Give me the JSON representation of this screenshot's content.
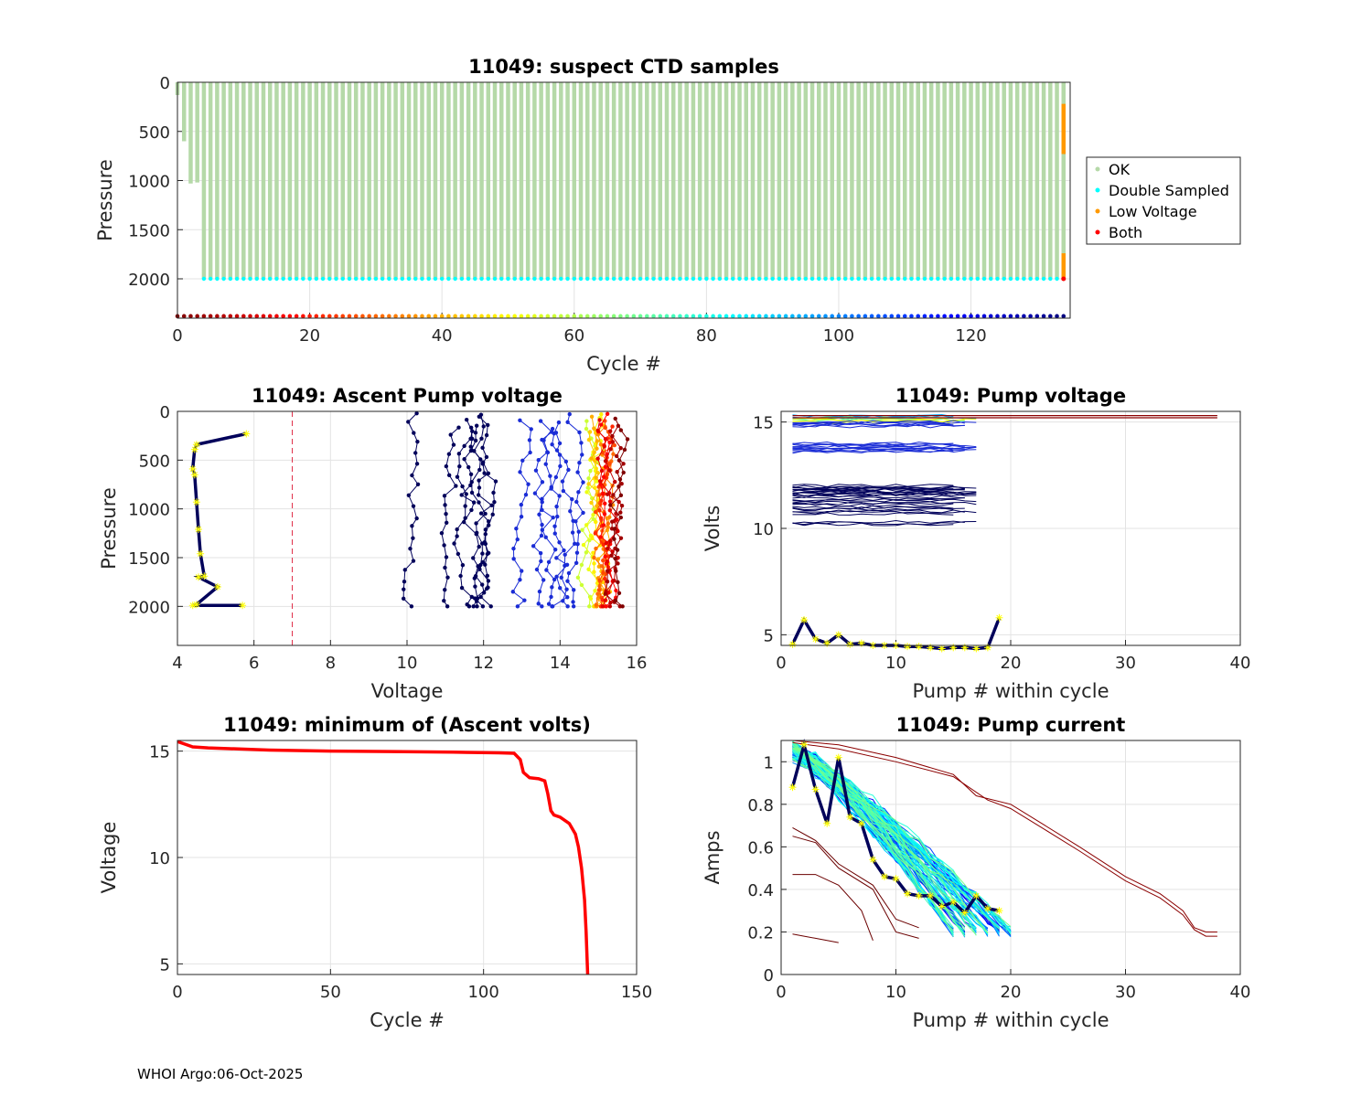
{
  "footer": "WHOI Argo:06-Oct-2025",
  "colors": {
    "ok": "#b5d9a8",
    "double": "#00ffff",
    "low": "#ff9900",
    "both": "#ff0000",
    "threshold": "#e0304a",
    "marker": "#ffff00",
    "darkblue": "#00005a"
  },
  "chart_data": [
    {
      "id": "ctd",
      "type": "scatter",
      "title": "11049: suspect CTD samples",
      "xlabel": "Cycle #",
      "ylabel": "Pressure",
      "xlim": [
        0,
        135
      ],
      "ylim": [
        0,
        2400
      ],
      "y_reversed": true,
      "xticks": [
        0,
        20,
        40,
        60,
        80,
        100,
        120
      ],
      "yticks": [
        0,
        500,
        1000,
        1500,
        2000
      ],
      "legend": [
        "OK",
        "Double Sampled",
        "Low Voltage",
        "Both"
      ],
      "legend_position": "outside-right",
      "cycles": 134,
      "profile_bottom": {
        "first_cycles": [
          [
            0,
            130
          ],
          [
            1,
            600
          ],
          [
            2,
            1030
          ],
          [
            3,
            1020
          ]
        ],
        "default": 2000
      },
      "double_sampled_depth": 2000,
      "double_sampled_from_cycle": 4,
      "low_voltage_segments": [
        {
          "cycle": 134,
          "from": 220,
          "to": 730
        },
        {
          "cycle": 134,
          "from": 1740,
          "to": 2000
        }
      ],
      "both_points": [
        {
          "cycle": 134,
          "p": 2000
        }
      ],
      "cycle_marker_depth": 2380
    },
    {
      "id": "ascent",
      "type": "line",
      "title": "11049: Ascent Pump voltage",
      "xlabel": "Voltage",
      "ylabel": "Pressure",
      "xlim": [
        4,
        16
      ],
      "ylim": [
        0,
        2400
      ],
      "y_reversed": true,
      "xticks": [
        4,
        6,
        8,
        10,
        12,
        14,
        16
      ],
      "yticks": [
        0,
        500,
        1000,
        1500,
        2000
      ],
      "threshold_voltage": 7,
      "highlight_profile": {
        "v": [
          5.8,
          4.5,
          4.45,
          4.4,
          4.45,
          4.5,
          4.55,
          4.6,
          4.7,
          4.55,
          5.05,
          4.5,
          4.4,
          5.7
        ],
        "p": [
          230,
          340,
          390,
          590,
          650,
          930,
          1210,
          1460,
          1690,
          1700,
          1800,
          1980,
          1990,
          1990
        ]
      },
      "profile_voltages": [
        10.1,
        11.1,
        11.5,
        11.7,
        11.85,
        11.95,
        12.05,
        13.0,
        13.55,
        13.75,
        13.95,
        14.1,
        14.4,
        14.75,
        14.9,
        14.98,
        15.02,
        15.06,
        15.1,
        15.13,
        15.16,
        15.19,
        15.22,
        15.25,
        15.3,
        15.42,
        15.5
      ]
    },
    {
      "id": "pumpv",
      "type": "line",
      "title": "11049: Pump voltage",
      "xlabel": "Pump # within cycle",
      "ylabel": "Volts",
      "xlim": [
        0,
        40
      ],
      "ylim": [
        4.5,
        15.5
      ],
      "xticks": [
        0,
        10,
        20,
        30,
        40
      ],
      "yticks": [
        5,
        10,
        15
      ],
      "highlight": {
        "v": [
          4.55,
          5.7,
          4.8,
          4.6,
          5.0,
          4.55,
          4.6,
          4.5,
          4.5,
          4.5,
          4.45,
          4.45,
          4.4,
          4.35,
          4.4,
          4.4,
          4.35,
          4.4,
          5.8
        ]
      },
      "level_lines": [
        15.3,
        15.2,
        15.1,
        15.0,
        14.9,
        14.0,
        13.9,
        13.8,
        13.7,
        12.0,
        11.9,
        11.8,
        11.7,
        11.6,
        11.4,
        11.2,
        11.0,
        10.8,
        10.3
      ],
      "red_lines": [
        {
          "from": 1,
          "to": 38,
          "v": 15.3
        },
        {
          "from": 1,
          "to": 38,
          "v": 15.2
        }
      ]
    },
    {
      "id": "minv",
      "type": "line",
      "title": "11049: minimum of (Ascent volts)",
      "xlabel": "Cycle #",
      "ylabel": "Voltage",
      "xlim": [
        0,
        150
      ],
      "ylim": [
        4.5,
        15.5
      ],
      "xticks": [
        0,
        50,
        100,
        150
      ],
      "yticks": [
        5,
        10,
        15
      ],
      "x": [
        0,
        2,
        5,
        10,
        30,
        50,
        70,
        90,
        105,
        110,
        112,
        113,
        115,
        118,
        120,
        121,
        122,
        123,
        125,
        128,
        130,
        131,
        132,
        133,
        133.5,
        134
      ],
      "y": [
        15.45,
        15.35,
        15.2,
        15.15,
        15.05,
        15.0,
        14.98,
        14.95,
        14.92,
        14.9,
        14.6,
        14.0,
        13.75,
        13.7,
        13.6,
        13.0,
        12.2,
        12.0,
        11.9,
        11.6,
        11.1,
        10.5,
        9.5,
        8.0,
        6.5,
        4.5
      ]
    },
    {
      "id": "current",
      "type": "line",
      "title": "11049: Pump current",
      "xlabel": "Pump # within cycle",
      "ylabel": "Amps",
      "xlim": [
        0,
        40
      ],
      "ylim": [
        0,
        1.1
      ],
      "xticks": [
        0,
        10,
        20,
        30,
        40
      ],
      "yticks": [
        0,
        0.2,
        0.4,
        0.6,
        0.8,
        1
      ],
      "highlight": {
        "a": [
          0.88,
          1.08,
          0.87,
          0.71,
          1.02,
          0.74,
          0.71,
          0.54,
          0.46,
          0.45,
          0.38,
          0.37,
          0.37,
          0.32,
          0.34,
          0.29,
          0.37,
          0.31,
          0.3
        ]
      },
      "long_lines": [
        {
          "x": [
            1,
            5,
            10,
            15,
            17,
            20,
            23,
            26,
            30,
            33,
            35,
            36,
            37,
            38
          ],
          "a": [
            1.1,
            1.08,
            1.02,
            0.94,
            0.84,
            0.8,
            0.7,
            0.6,
            0.46,
            0.38,
            0.3,
            0.22,
            0.2,
            0.2
          ]
        },
        {
          "x": [
            1,
            5,
            10,
            15,
            18,
            20,
            23,
            26,
            30,
            33,
            35,
            36,
            37,
            38
          ],
          "a": [
            1.09,
            1.06,
            1.0,
            0.93,
            0.82,
            0.78,
            0.68,
            0.58,
            0.44,
            0.36,
            0.28,
            0.21,
            0.18,
            0.18
          ]
        }
      ],
      "short_lines": [
        {
          "x": [
            1,
            2,
            3,
            4,
            5
          ],
          "a": [
            0.19,
            0.18,
            0.17,
            0.16,
            0.15
          ]
        },
        {
          "x": [
            1,
            3,
            5,
            7,
            8
          ],
          "a": [
            0.47,
            0.47,
            0.42,
            0.3,
            0.16
          ]
        },
        {
          "x": [
            1,
            3,
            5,
            8,
            10,
            12
          ],
          "a": [
            0.65,
            0.62,
            0.5,
            0.4,
            0.2,
            0.17
          ]
        },
        {
          "x": [
            1,
            3,
            5,
            8,
            10,
            12
          ],
          "a": [
            0.69,
            0.63,
            0.52,
            0.42,
            0.26,
            0.22
          ]
        }
      ]
    }
  ]
}
